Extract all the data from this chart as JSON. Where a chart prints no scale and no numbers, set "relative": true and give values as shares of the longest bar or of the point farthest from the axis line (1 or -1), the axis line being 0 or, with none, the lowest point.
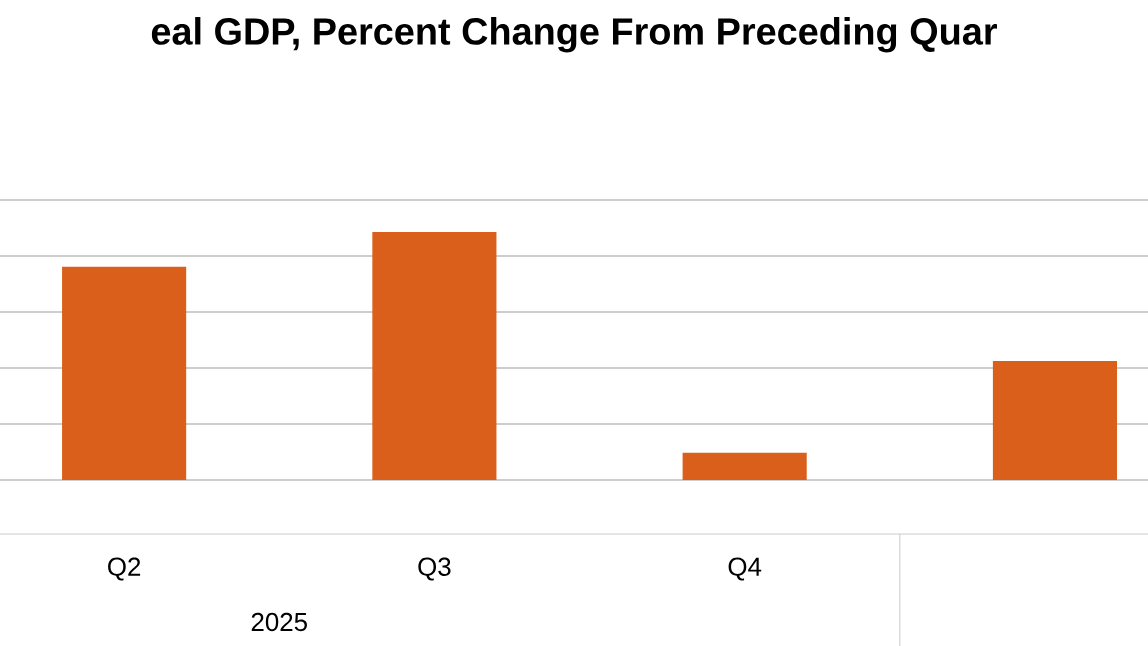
{
  "chart_data": {
    "type": "bar",
    "title": "eal GDP, Percent Change From Preceding Quar",
    "categories": [
      "Q2",
      "Q3",
      "Q4",
      null
    ],
    "values": [
      0.86,
      1,
      0.11,
      0.48
    ],
    "color": "#d95f1a",
    "relative": true,
    "grid": "y",
    "annotations": [
      "2025"
    ]
  }
}
